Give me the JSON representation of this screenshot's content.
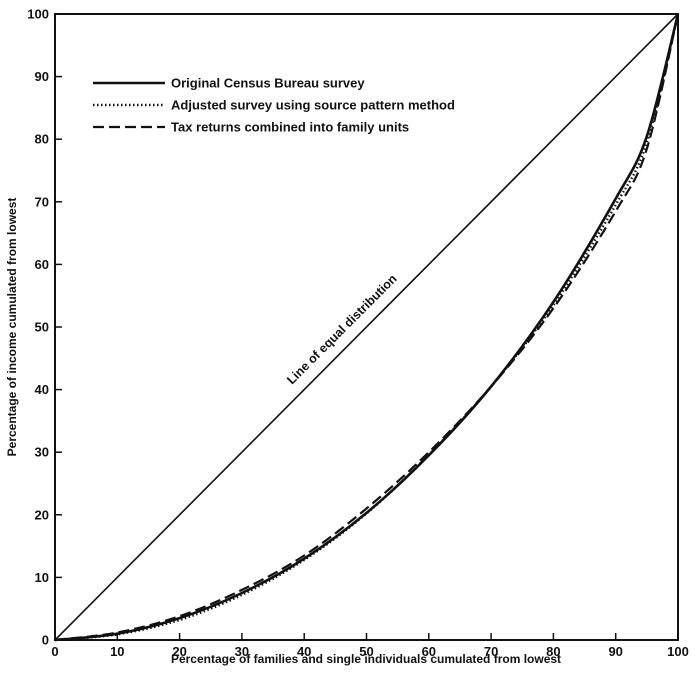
{
  "chart_data": {
    "type": "line",
    "title": "",
    "xlabel": "Percentage of families and single individuals cumulated from lowest",
    "ylabel": "Percentage of income cumulated from lowest",
    "xlim": [
      0,
      100
    ],
    "ylim": [
      0,
      100
    ],
    "x_ticks": [
      0,
      10,
      20,
      30,
      40,
      50,
      60,
      70,
      80,
      90,
      100
    ],
    "y_ticks": [
      0,
      10,
      20,
      30,
      40,
      50,
      60,
      70,
      80,
      90,
      100
    ],
    "grid": false,
    "legend_position": "top-left",
    "annotation": "Line of equal distribution",
    "reference_line": {
      "x": [
        0,
        100
      ],
      "y": [
        0,
        100
      ]
    },
    "series": [
      {
        "name": "Original Census Bureau survey",
        "style": "solid",
        "x": [
          0,
          10,
          20,
          30,
          40,
          50,
          60,
          70,
          80,
          90,
          95,
          100
        ],
        "y": [
          0,
          1,
          3.5,
          7.5,
          13,
          20.3,
          29.5,
          40.5,
          54,
          70.5,
          80.5,
          100
        ]
      },
      {
        "name": "Adjusted survey using source pattern method",
        "style": "dotted",
        "x": [
          0,
          10,
          20,
          30,
          40,
          50,
          60,
          70,
          80,
          90,
          95,
          100
        ],
        "y": [
          0,
          0.9,
          3.2,
          7.2,
          12.8,
          20.2,
          29.6,
          40.5,
          53.5,
          69.5,
          79.5,
          100
        ]
      },
      {
        "name": "Tax returns combined into family units",
        "style": "dashed",
        "x": [
          0,
          10,
          20,
          30,
          40,
          50,
          60,
          70,
          80,
          90,
          95,
          100
        ],
        "y": [
          0,
          1.2,
          3.8,
          8,
          13.5,
          21,
          30,
          40.5,
          53,
          68.5,
          78.5,
          100
        ]
      }
    ]
  }
}
